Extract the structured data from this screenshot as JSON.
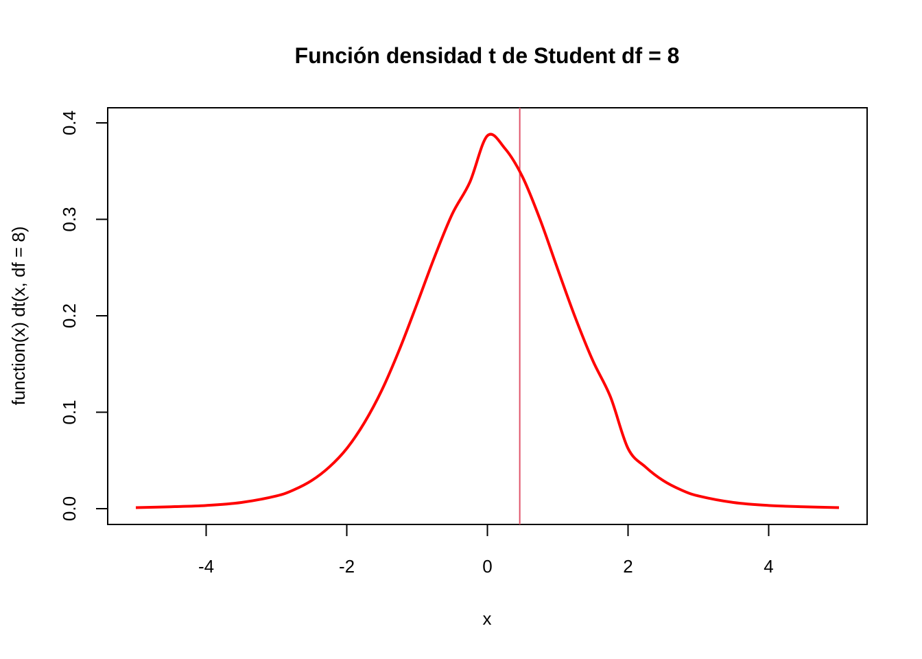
{
  "chart_data": {
    "type": "line",
    "title": "Función densidad t de Student df = 8",
    "xlabel": "x",
    "ylabel": "function(x) dt(x, df = 8)",
    "xlim": [
      -5,
      5
    ],
    "ylim": [
      0,
      0.4
    ],
    "x_ticks": [
      -4,
      -2,
      0,
      2,
      4
    ],
    "x_tick_labels": [
      "-4",
      "-2",
      "0",
      "2",
      "4"
    ],
    "y_ticks": [
      0.0,
      0.1,
      0.2,
      0.3,
      0.4
    ],
    "y_tick_labels": [
      "0.0",
      "0.1",
      "0.2",
      "0.3",
      "0.4"
    ],
    "grid": false,
    "series": [
      {
        "color": "#ff0000",
        "x": [
          -5,
          -4.5,
          -4,
          -3.5,
          -3,
          -2.75,
          -2.5,
          -2.25,
          -2,
          -1.75,
          -1.5,
          -1.25,
          -1,
          -0.75,
          -0.5,
          -0.25,
          0,
          0.25,
          0.5,
          0.75,
          1,
          1.25,
          1.5,
          1.75,
          2,
          2.25,
          2.5,
          2.75,
          3,
          3.5,
          4,
          4.5,
          5
        ],
        "y": [
          0.0011,
          0.002,
          0.0033,
          0.0064,
          0.0132,
          0.0196,
          0.0291,
          0.0431,
          0.0624,
          0.0891,
          0.1231,
          0.1652,
          0.2126,
          0.2613,
          0.3055,
          0.3385,
          0.3867,
          0.3734,
          0.3439,
          0.2996,
          0.2483,
          0.1981,
          0.1533,
          0.1159,
          0.0624,
          0.0431,
          0.0291,
          0.0196,
          0.0132,
          0.0064,
          0.0033,
          0.002,
          0.0011
        ]
      }
    ],
    "vline": {
      "x": 0.46,
      "color": "#e0536a"
    }
  }
}
